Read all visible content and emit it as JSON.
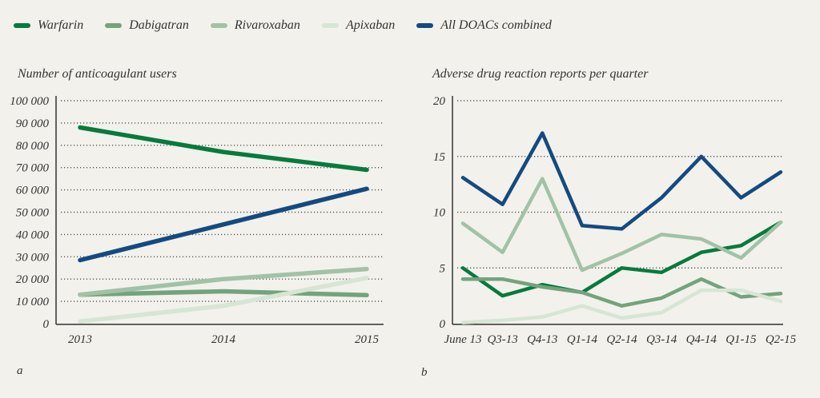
{
  "legend": {
    "items": [
      {
        "label": "Warfarin",
        "color": "#077a3e"
      },
      {
        "label": "Dabigatran",
        "color": "#74a37e"
      },
      {
        "label": "Rivaroxaban",
        "color": "#a2c2a7"
      },
      {
        "label": "Apixaban",
        "color": "#d7e5d4"
      },
      {
        "label": "All DOACs combined",
        "color": "#144a80"
      }
    ]
  },
  "colors": {
    "background": "#f2f1ec",
    "axis": "#3f3f3d",
    "gridline": "#57575a",
    "warfarin": "#077a3e",
    "dabigatran": "#74a37e",
    "rivaroxaban": "#a2c2a7",
    "apixaban": "#d7e5d4",
    "doacs_blue": "#144a80"
  },
  "chart_data": [
    {
      "type": "line",
      "title": "Number of anticoagulant users",
      "footnote": "a",
      "x": [
        "2013",
        "2014",
        "2015"
      ],
      "ylim": [
        0,
        100000
      ],
      "grid": "dotted-horizontal",
      "yticks": {
        "values": [
          0,
          10000,
          20000,
          30000,
          40000,
          50000,
          60000,
          70000,
          80000,
          90000,
          100000
        ],
        "labels": [
          "0",
          "10 000",
          "20 000",
          "30 000",
          "40 000",
          "50 000",
          "60 000",
          "70 000",
          "80 000",
          "90 000",
          "100 000"
        ]
      },
      "series": [
        {
          "name": "Warfarin",
          "color": "#077a3e",
          "values": [
            88000,
            77000,
            69000
          ]
        },
        {
          "name": "Dabigatran",
          "color": "#74a37e",
          "values": [
            13000,
            14500,
            12800
          ]
        },
        {
          "name": "Rivaroxaban",
          "color": "#a2c2a7",
          "values": [
            13000,
            20000,
            24500
          ]
        },
        {
          "name": "Apixaban",
          "color": "#d7e5d4",
          "values": [
            1000,
            8000,
            20500
          ]
        },
        {
          "name": "All DOACs combined",
          "color": "#144a80",
          "values": [
            28500,
            44500,
            60500
          ]
        }
      ]
    },
    {
      "type": "line",
      "title": "Adverse drug reaction reports per quarter",
      "footnote": "b",
      "x": [
        "June 13",
        "Q3-13",
        "Q4-13",
        "Q1-14",
        "Q2-14",
        "Q3-14",
        "Q4-14",
        "Q1-15",
        "Q2-15"
      ],
      "ylim": [
        0,
        20
      ],
      "grid": "dotted-horizontal",
      "yticks": {
        "values": [
          0,
          5,
          10,
          15,
          20
        ],
        "labels": [
          "0",
          "5",
          "10",
          "15",
          "20"
        ]
      },
      "series": [
        {
          "name": "Warfarin",
          "color": "#077a3e",
          "values": [
            5,
            2.5,
            3.5,
            2.8,
            5,
            4.6,
            6.4,
            7,
            9.1
          ]
        },
        {
          "name": "Dabigatran",
          "color": "#74a37e",
          "values": [
            4,
            4,
            3.3,
            2.8,
            1.6,
            2.3,
            4,
            2.4,
            2.7
          ]
        },
        {
          "name": "Rivaroxaban",
          "color": "#a2c2a7",
          "values": [
            9,
            6.4,
            13,
            4.8,
            6.3,
            8,
            7.6,
            5.9,
            9.1
          ]
        },
        {
          "name": "Apixaban",
          "color": "#d7e5d4",
          "values": [
            0.1,
            0.3,
            0.6,
            1.6,
            0.5,
            1,
            3,
            3,
            2
          ]
        },
        {
          "name": "All DOACs combined",
          "color": "#144a80",
          "values": [
            13.1,
            10.7,
            17.1,
            8.8,
            8.5,
            11.3,
            15,
            11.3,
            13.6
          ]
        }
      ]
    }
  ]
}
